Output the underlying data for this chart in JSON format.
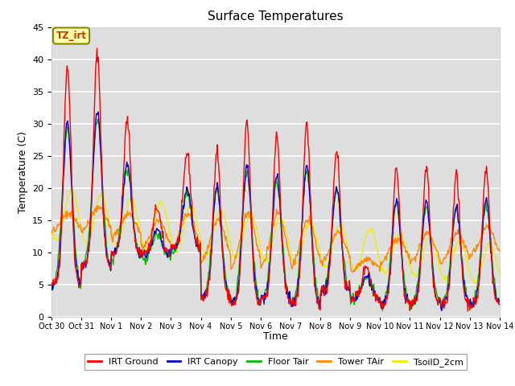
{
  "title": "Surface Temperatures",
  "xlabel": "Time",
  "ylabel": "Temperature (C)",
  "ylim": [
    0,
    45
  ],
  "plot_bg_color": "#dedede",
  "grid_color": "#ffffff",
  "series_colors": {
    "IRT Ground": "#ff0000",
    "IRT Canopy": "#0000cc",
    "Floor Tair": "#00bb00",
    "Tower TAir": "#ff8800",
    "TsoilD_2cm": "#eeee00"
  },
  "xtick_labels": [
    "Oct 30",
    "Oct 31",
    "Nov 1",
    "Nov 2",
    "Nov 3",
    "Nov 4",
    "Nov 5",
    "Nov 6",
    "Nov 7",
    "Nov 8",
    "Nov 9",
    "Nov 10",
    "Nov 11",
    "Nov 12",
    "Nov 13",
    "Nov 14"
  ],
  "annotation_text": "TZ_irt",
  "annotation_color": "#cc3300",
  "annotation_bg": "#ffffaa",
  "annotation_border": "#888800"
}
